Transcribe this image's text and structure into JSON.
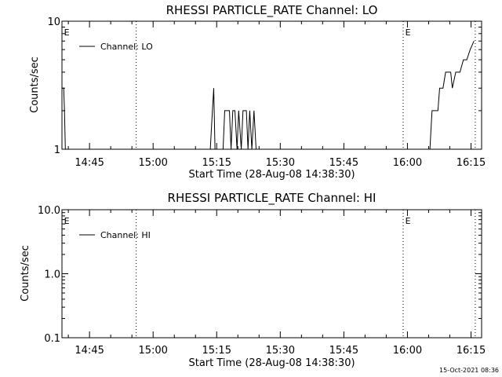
{
  "footer": {
    "timestamp": "15-Oct-2021 08:36"
  },
  "chart_data": [
    {
      "type": "line",
      "title": "RHESSI PARTICLE_RATE Channel: LO",
      "xlabel": "Start Time (28-Aug-08 14:38:30)",
      "ylabel": "Counts/sec",
      "y_scale": "log",
      "ylim": [
        1,
        10
      ],
      "y_ticks": [
        1,
        10
      ],
      "y_tick_labels": [
        "1",
        "10"
      ],
      "xlim_minutes": [
        0,
        99
      ],
      "x_ticks": [
        {
          "minutes": 6.5,
          "label": "14:45"
        },
        {
          "minutes": 21.5,
          "label": "15:00"
        },
        {
          "minutes": 36.5,
          "label": "15:15"
        },
        {
          "minutes": 51.5,
          "label": "15:30"
        },
        {
          "minutes": 66.5,
          "label": "15:45"
        },
        {
          "minutes": 81.5,
          "label": "16:00"
        },
        {
          "minutes": 96.5,
          "label": "16:15"
        }
      ],
      "vlines_minutes": [
        17.5,
        80.5,
        97.5
      ],
      "markers": [
        {
          "label": "E",
          "minutes": 0.3
        },
        {
          "label": "E",
          "minutes": 80.8
        }
      ],
      "legend": {
        "position": "top-left"
      },
      "series": [
        {
          "name": "Channel: LO",
          "x": [
            0,
            0.4,
            0.6,
            0.8,
            35.0,
            35.5,
            35.8,
            36.1,
            38.0,
            38.4,
            39.5,
            39.9,
            40.3,
            40.8,
            41.3,
            41.7,
            42.3,
            42.7,
            43.5,
            43.9,
            44.3,
            44.8,
            45.3,
            45.8,
            86.8,
            87.3,
            88.7,
            89.1,
            89.9,
            90.5,
            91.7,
            92.1,
            92.9,
            93.9,
            94.7,
            95.5,
            96.3,
            97.2
          ],
          "y": [
            3,
            3,
            2,
            1,
            1,
            2,
            3,
            1,
            1,
            2,
            2,
            1,
            2,
            2,
            1,
            2,
            1,
            2,
            2,
            1,
            2,
            1,
            2,
            1,
            1,
            2,
            2,
            3,
            3,
            4,
            4,
            3,
            4,
            4,
            5,
            5,
            6,
            7
          ]
        }
      ]
    },
    {
      "type": "line",
      "title": "RHESSI PARTICLE_RATE Channel: HI",
      "xlabel": "Start Time (28-Aug-08 14:38:30)",
      "ylabel": "Counts/sec",
      "y_scale": "log",
      "ylim": [
        0.1,
        10.0
      ],
      "y_ticks": [
        0.1,
        1.0,
        10.0
      ],
      "y_tick_labels": [
        "0.1",
        "1.0",
        "10.0"
      ],
      "xlim_minutes": [
        0,
        99
      ],
      "x_ticks": [
        {
          "minutes": 6.5,
          "label": "14:45"
        },
        {
          "minutes": 21.5,
          "label": "15:00"
        },
        {
          "minutes": 36.5,
          "label": "15:15"
        },
        {
          "minutes": 51.5,
          "label": "15:30"
        },
        {
          "minutes": 66.5,
          "label": "15:45"
        },
        {
          "minutes": 81.5,
          "label": "16:00"
        },
        {
          "minutes": 96.5,
          "label": "16:15"
        }
      ],
      "vlines_minutes": [
        17.5,
        80.5,
        97.5
      ],
      "markers": [
        {
          "label": "E",
          "minutes": 0.3
        },
        {
          "label": "E",
          "minutes": 80.8
        }
      ],
      "legend": {
        "position": "top-left"
      },
      "series": [
        {
          "name": "Channel: HI",
          "x": [],
          "y": []
        }
      ]
    }
  ]
}
